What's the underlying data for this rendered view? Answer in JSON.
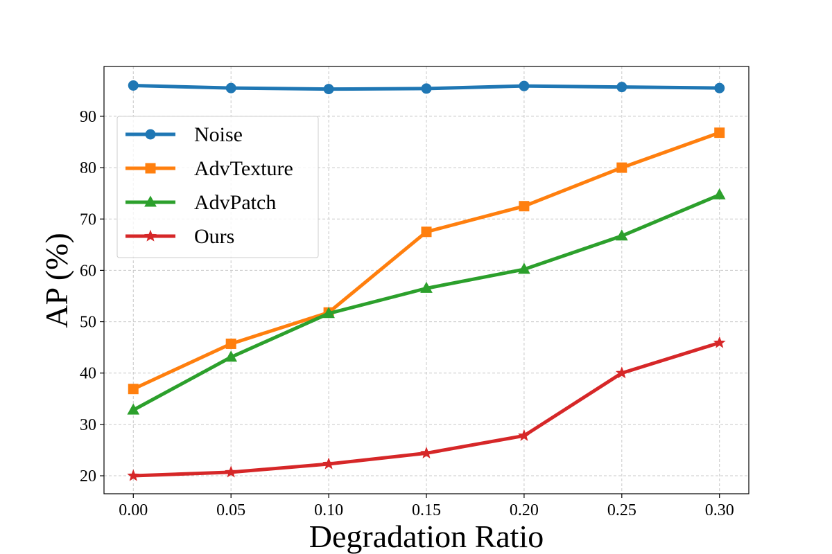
{
  "chart_data": {
    "type": "line",
    "title": "",
    "xlabel": "Degradation Ratio",
    "ylabel": "AP (%)",
    "x": [
      0.0,
      0.05,
      0.1,
      0.15,
      0.2,
      0.25,
      0.3
    ],
    "x_tick_labels": [
      "0.00",
      "0.05",
      "0.10",
      "0.15",
      "0.20",
      "0.25",
      "0.30"
    ],
    "y_ticks": [
      20,
      30,
      40,
      50,
      60,
      70,
      80,
      90
    ],
    "y_tick_labels": [
      "20",
      "30",
      "40",
      "50",
      "60",
      "70",
      "80",
      "90"
    ],
    "xlim": [
      -0.015,
      0.315
    ],
    "ylim": [
      16.5,
      99.7
    ],
    "grid": true,
    "legend_position": "upper-left",
    "series": [
      {
        "name": "Noise",
        "color": "#1f77b4",
        "marker": "circle",
        "values": [
          96.0,
          95.5,
          95.3,
          95.4,
          95.9,
          95.7,
          95.5
        ]
      },
      {
        "name": "AdvTexture",
        "color": "#ff7f0e",
        "marker": "square",
        "values": [
          36.9,
          45.7,
          51.8,
          67.5,
          72.5,
          80.0,
          86.8
        ]
      },
      {
        "name": "AdvPatch",
        "color": "#2ca02c",
        "marker": "triangle",
        "values": [
          32.8,
          43.1,
          51.6,
          56.5,
          60.2,
          66.7,
          74.7
        ]
      },
      {
        "name": "Ours",
        "color": "#d62728",
        "marker": "star",
        "values": [
          20.0,
          20.7,
          22.3,
          24.4,
          27.8,
          40.0,
          45.9
        ]
      }
    ]
  }
}
